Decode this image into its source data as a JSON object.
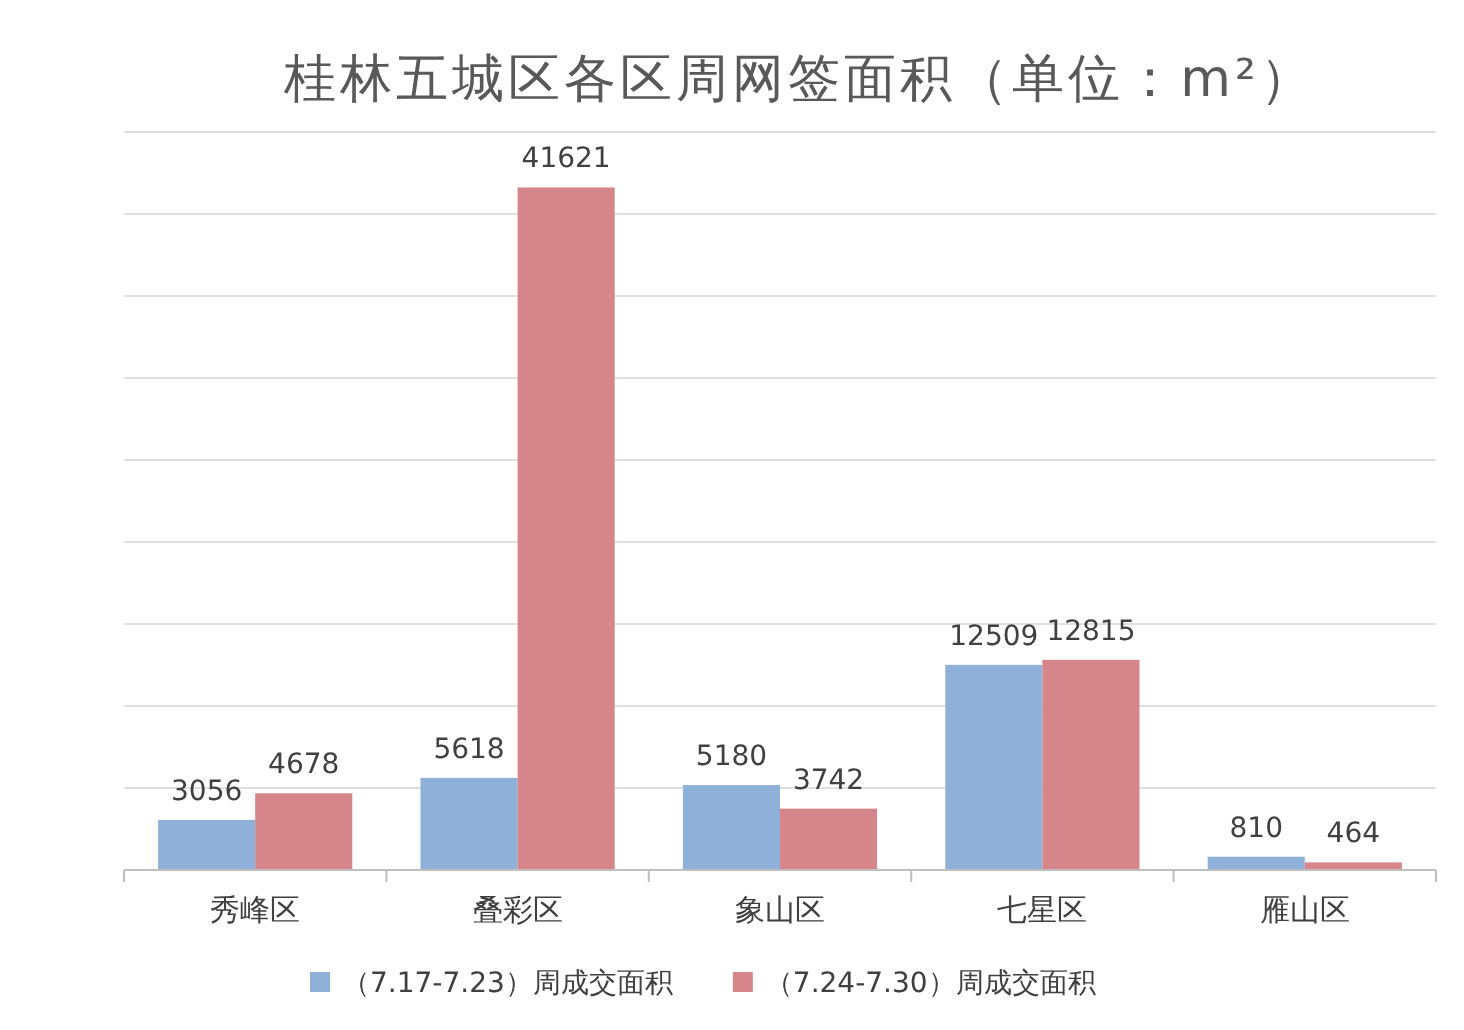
{
  "chart_data": {
    "type": "bar",
    "title": "桂林五城区各区周网签面积（单位：m²）",
    "categories": [
      "秀峰区",
      "叠彩区",
      "象山区",
      "七星区",
      "雁山区"
    ],
    "series": [
      {
        "name": "（7.17-7.23）周成交面积",
        "color": "#8fb0d9",
        "values": [
          3056,
          5618,
          5180,
          12509,
          810
        ]
      },
      {
        "name": "（7.24-7.30）周成交面积",
        "color": "#d6868a",
        "values": [
          4678,
          41621,
          3742,
          12815,
          464
        ]
      }
    ],
    "ylim": [
      0,
      45000
    ],
    "yticks": [
      {
        "value": 0,
        "label": null
      },
      {
        "value": 5000,
        "label": null
      },
      {
        "value": 10000,
        "label": null
      },
      {
        "value": 15000,
        "label": null
      },
      {
        "value": 20000,
        "label": null
      },
      {
        "value": 25000,
        "label": null
      },
      {
        "value": 30000,
        "label": null
      },
      {
        "value": 35000,
        "label": null
      },
      {
        "value": 40000,
        "label": null
      },
      {
        "value": 45000,
        "label": null
      }
    ],
    "tick_labels": "x",
    "grid": "y",
    "legend": "bottom",
    "data_labels": true
  }
}
